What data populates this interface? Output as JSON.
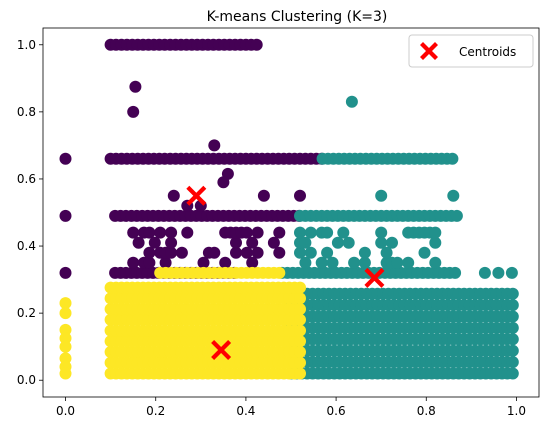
{
  "chart_data": {
    "type": "scatter",
    "title": "K-means Clustering (K=3)",
    "xlabel": "",
    "ylabel": "",
    "xlim": [
      -0.05,
      1.05
    ],
    "ylim": [
      -0.05,
      1.05
    ],
    "xticks": [
      0.0,
      0.2,
      0.4,
      0.6,
      0.8,
      1.0
    ],
    "xtick_labels": [
      "0.0",
      "0.2",
      "0.4",
      "0.6",
      "0.8",
      "1.0"
    ],
    "yticks": [
      0.0,
      0.2,
      0.4,
      0.6,
      0.8,
      1.0
    ],
    "ytick_labels": [
      "0.0",
      "0.2",
      "0.4",
      "0.6",
      "0.8",
      "1.0"
    ],
    "grid": false,
    "legend": {
      "position": "top-right",
      "entries": [
        "Centroids"
      ]
    },
    "colors": {
      "cluster_0": "#440154",
      "cluster_1": "#21918c",
      "cluster_2": "#fde725",
      "centroid": "#ff0000"
    },
    "clusters": [
      {
        "name": "cluster_0",
        "color": "#440154",
        "regions": [
          {
            "xmin": 0.1,
            "xmax": 0.43,
            "y": [
              1.0
            ]
          },
          {
            "xmin": 0.1,
            "xmax": 0.57,
            "y": [
              0.66
            ]
          },
          {
            "xmin": 0.11,
            "xmax": 0.52,
            "y": [
              0.49
            ]
          },
          {
            "xmin": 0.11,
            "xmax": 0.38,
            "y": [
              0.32
            ]
          },
          {
            "xmin": 0.15,
            "xmax": 0.48,
            "ystep": 0.03,
            "ymin": 0.35,
            "ymax": 0.46,
            "density": 0.35
          }
        ],
        "points": [
          [
            0.0,
            0.66
          ],
          [
            0.0,
            0.49
          ],
          [
            0.0,
            0.32
          ],
          [
            0.155,
            0.875
          ],
          [
            0.15,
            0.8
          ],
          [
            0.33,
            0.7
          ],
          [
            0.36,
            0.615
          ],
          [
            0.24,
            0.55
          ],
          [
            0.35,
            0.59
          ],
          [
            0.44,
            0.55
          ],
          [
            0.52,
            0.55
          ],
          [
            0.3,
            0.52
          ],
          [
            0.27,
            0.52
          ]
        ]
      },
      {
        "name": "cluster_1",
        "color": "#21918c",
        "regions": [
          {
            "xmin": 0.57,
            "xmax": 0.86,
            "y": [
              0.66
            ]
          },
          {
            "xmin": 0.52,
            "xmax": 0.87,
            "y": [
              0.49
            ]
          },
          {
            "xmin": 0.48,
            "xmax": 0.87,
            "y": [
              0.32
            ]
          },
          {
            "xmin": 0.5,
            "xmax": 1.0,
            "ystep": 0.034,
            "ymin": 0.02,
            "ymax": 0.27,
            "density": 1.0
          },
          {
            "xmin": 0.52,
            "xmax": 0.82,
            "ystep": 0.03,
            "ymin": 0.35,
            "ymax": 0.44,
            "density": 0.35
          }
        ],
        "points": [
          [
            0.635,
            0.83
          ],
          [
            0.7,
            0.55
          ],
          [
            0.86,
            0.55
          ],
          [
            0.93,
            0.32
          ],
          [
            0.96,
            0.32
          ],
          [
            0.99,
            0.32
          ]
        ]
      },
      {
        "name": "cluster_2",
        "color": "#fde725",
        "regions": [
          {
            "xmin": 0.1,
            "xmax": 0.52,
            "ystep": 0.032,
            "ymin": 0.02,
            "ymax": 0.28,
            "density": 1.0
          },
          {
            "xmin": 0.21,
            "xmax": 0.48,
            "y": [
              0.32
            ]
          }
        ],
        "points": [
          [
            0.0,
            0.23
          ],
          [
            0.0,
            0.2
          ],
          [
            0.0,
            0.15
          ],
          [
            0.0,
            0.125
          ],
          [
            0.0,
            0.1
          ],
          [
            0.0,
            0.065
          ],
          [
            0.0,
            0.04
          ],
          [
            0.0,
            0.02
          ]
        ]
      }
    ],
    "centroids": [
      {
        "x": 0.29,
        "y": 0.55
      },
      {
        "x": 0.345,
        "y": 0.09
      },
      {
        "x": 0.685,
        "y": 0.305
      }
    ]
  }
}
